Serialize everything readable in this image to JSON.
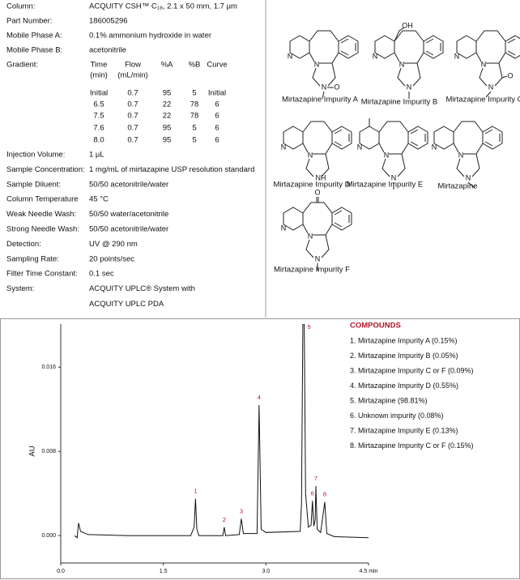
{
  "method": {
    "rows_top": [
      {
        "label": "Column:",
        "value": "ACQUITY CSH™ C₁₈, 2.1 x 50 mm, 1.7 µm"
      },
      {
        "label": "Part Number:",
        "value": "186005296"
      },
      {
        "label": "Mobile Phase A:",
        "value": "0.1% ammonium hydroxide in water"
      },
      {
        "label": "Mobile Phase B:",
        "value": "acetonitrile"
      }
    ],
    "gradient_label": "Gradient:",
    "gradient": {
      "headers": [
        [
          "Time",
          "(min)"
        ],
        [
          "Flow",
          "(mL/min)"
        ],
        [
          "%A"
        ],
        [
          "%B"
        ],
        [
          "Curve"
        ]
      ],
      "rows": [
        [
          "Initial",
          "0.7",
          "95",
          "5",
          "Initial"
        ],
        [
          "6.5",
          "0.7",
          "22",
          "78",
          "6"
        ],
        [
          "7.5",
          "0.7",
          "22",
          "78",
          "6"
        ],
        [
          "7.6",
          "0.7",
          "95",
          "5",
          "6"
        ],
        [
          "8.0",
          "0.7",
          "95",
          "5",
          "6"
        ]
      ]
    },
    "rows_bottom": [
      {
        "label": "Injection Volume:",
        "value": "1 µL"
      },
      {
        "label": "Sample Concentration:",
        "value": "1 mg/mL of mirtazapine USP resolution standard"
      },
      {
        "label": "Sample Diluent:",
        "value": "50/50 acetonitrile/water"
      },
      {
        "label": "Column Temperature",
        "value": "45 °C"
      },
      {
        "label": "Weak Needle Wash:",
        "value": "50/50 water/acetonitrile"
      },
      {
        "label": "Strong Needle Wash:",
        "value": "50/50 acetonitrile/water"
      },
      {
        "label": "Detection:",
        "value": "UV @ 290 nm"
      },
      {
        "label": "Sampling Rate:",
        "value": "20 points/sec"
      },
      {
        "label": "Filter Time Constant:",
        "value": "0.1 sec"
      },
      {
        "label": "System:",
        "value": [
          "ACQUITY UPLC® System with",
          "ACQUITY UPLC PDA"
        ]
      }
    ]
  },
  "structures": [
    {
      "name": "Mirtazapine Impurity A",
      "atoms": [
        "N",
        "N",
        "N",
        "O"
      ]
    },
    {
      "name": "Mirtazapine Impurity B",
      "atoms": [
        "N",
        "N",
        "N",
        "OH"
      ]
    },
    {
      "name": "Mirtazapine Impurity C",
      "atoms": [
        "N",
        "N",
        "N",
        "O"
      ]
    },
    {
      "name": "Mirtazapine Impurity D",
      "atoms": [
        "N",
        "N",
        "NH"
      ]
    },
    {
      "name": "Mirtazapine Impurity E",
      "atoms": [
        "N",
        "N",
        "N"
      ]
    },
    {
      "name": "Mirtazapine",
      "atoms": [
        "N",
        "N",
        "N"
      ]
    },
    {
      "name": "Mirtazapine Impurity F",
      "atoms": [
        "O",
        "N",
        "N",
        "N"
      ]
    }
  ],
  "chart_data": {
    "type": "line",
    "y_label": "AU",
    "xlim": [
      0,
      4.5
    ],
    "xticks": [
      {
        "value": 0,
        "label": "0.0"
      },
      1.5,
      {
        "value": 3,
        "label": "3.0"
      },
      {
        "value": 4.5,
        "label": "4.5 min"
      }
    ],
    "ylim": [
      -0.0026,
      0.0201
    ],
    "yticks": [
      {
        "value": 0,
        "label": "0.000"
      },
      0.008,
      0.016
    ],
    "series": [
      {
        "color": "#111111",
        "x": [
          0.2,
          0.24,
          0.26,
          0.29,
          0.4,
          1.0,
          1.9,
          1.95,
          1.97,
          1.99,
          2.02,
          2.37,
          2.39,
          2.41,
          2.61,
          2.64,
          2.67,
          2.87,
          2.9,
          2.93,
          3.0,
          3.5,
          3.52,
          3.54,
          3.56,
          3.58,
          3.62,
          3.66,
          3.68,
          3.7,
          3.72,
          3.73,
          3.75,
          3.8,
          3.86,
          3.89,
          4.0,
          4.5
        ],
        "values": [
          0,
          -0.0002,
          0.0012,
          0.0004,
          0.0001,
          0,
          0,
          0.0008,
          0.0035,
          0.0006,
          0,
          0,
          0.0008,
          0,
          0.0001,
          0.0016,
          0.0002,
          0.0002,
          0.0124,
          0.0006,
          0.0003,
          0.0004,
          0.003,
          0.0201,
          0.0201,
          0.004,
          0.0008,
          0.001,
          0.0033,
          0.0009,
          0.0015,
          0.0047,
          0.0006,
          0.0003,
          0.0032,
          0.0002,
          -0.0001,
          -0.0002
        ]
      }
    ],
    "annotations": [
      {
        "text": "1",
        "x": 1.97,
        "y": 0.0035
      },
      {
        "text": "2",
        "x": 2.39,
        "y": 0.0008
      },
      {
        "text": "3",
        "x": 2.64,
        "y": 0.0016
      },
      {
        "text": "4",
        "x": 2.9,
        "y": 0.0124
      },
      {
        "text": "5",
        "x": 3.56,
        "y": 0.0201
      },
      {
        "text": "6",
        "x": 3.68,
        "y": 0.0033
      },
      {
        "text": "7",
        "x": 3.73,
        "y": 0.0047
      },
      {
        "text": "8",
        "x": 3.86,
        "y": 0.0032
      }
    ],
    "annotation_color": "#b0182a",
    "legend_title": "COMPOUNDS",
    "legend_items": [
      "1. Mirtazapine Impurity A (0.15%)",
      "2. Mirtazapine Impurity B (0.05%)",
      "3. Mirtazapine Impurity C or F (0.09%)",
      "4. Mirtazapine Impurity D (0.55%)",
      "5. Mirtazapine (98.81%)",
      "6. Unknown impurity (0.08%)",
      "7. Mirtazapine Impurity E (0.13%)",
      "8. Mirtazapine Impurity C or F (0.15%)"
    ]
  }
}
